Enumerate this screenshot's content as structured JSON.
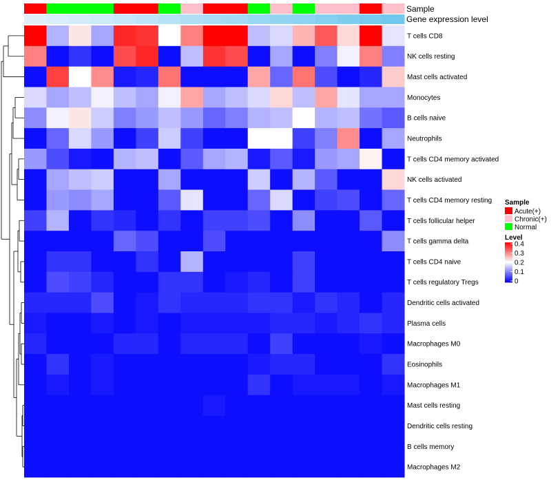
{
  "chart_data": {
    "type": "heatmap",
    "title": "",
    "annotations": {
      "sample_label": "Sample",
      "gene_label": "Gene expression level",
      "sample": [
        "Acute(+)",
        "Normal",
        "Normal",
        "Normal",
        "Acute(+)",
        "Acute(+)",
        "Normal",
        "Chronic(+)",
        "Acute(+)",
        "Acute(+)",
        "Normal",
        "Chronic(+)",
        "Normal",
        "Chronic(+)",
        "Chronic(+)",
        "Acute(+)",
        "Chronic(+)"
      ],
      "gene_expression": [
        0.05,
        0.1,
        0.15,
        0.2,
        0.25,
        0.3,
        0.35,
        0.4,
        0.45,
        0.5,
        0.55,
        0.6,
        0.65,
        0.7,
        0.75,
        0.8,
        0.85
      ]
    },
    "rows": [
      "T cells CD8",
      "NK cells resting",
      "Mast cells activated",
      "Monocytes",
      "B cells naive",
      "Neutrophils",
      "T cells CD4 memory activated",
      "NK cells activated",
      "T cells CD4 memory resting",
      "T cells follicular helper",
      "T cells gamma delta",
      "T cells CD4 naive",
      "T cells regulatory  Tregs",
      "Dendritic cells activated",
      "Plasma cells",
      "Macrophages M0",
      "Eosinophils",
      "Macrophages M1",
      "Mast cells resting",
      "Dendritic cells resting",
      "B cells memory",
      "Macrophages M2"
    ],
    "values": [
      [
        0.4,
        0.14,
        0.22,
        0.13,
        0.37,
        0.36,
        0.2,
        0.3,
        0.4,
        0.4,
        0.15,
        0.17,
        0.26,
        0.33,
        0.23,
        0.4,
        0.18
      ],
      [
        0.3,
        0.01,
        0.04,
        0.01,
        0.34,
        0.37,
        0.01,
        0.15,
        0.36,
        0.34,
        0.01,
        0.13,
        0.01,
        0.1,
        0.19,
        0.3,
        0.1
      ],
      [
        0.01,
        0.35,
        0.2,
        0.29,
        0.02,
        0.03,
        0.31,
        0.01,
        0.01,
        0.01,
        0.27,
        0.08,
        0.31,
        0.06,
        0.01,
        0.03,
        0.24
      ],
      [
        0.17,
        0.13,
        0.15,
        0.19,
        0.15,
        0.13,
        0.19,
        0.27,
        0.13,
        0.15,
        0.17,
        0.23,
        0.15,
        0.27,
        0.18,
        0.13,
        0.13
      ],
      [
        0.11,
        0.19,
        0.22,
        0.16,
        0.1,
        0.12,
        0.15,
        0.12,
        0.08,
        0.1,
        0.14,
        0.15,
        0.2,
        0.14,
        0.15,
        0.09,
        0.07
      ],
      [
        0.01,
        0.08,
        0.17,
        0.12,
        0.01,
        0.05,
        0.16,
        0.05,
        0.01,
        0.01,
        0.2,
        0.2,
        0.05,
        0.1,
        0.29,
        0.01,
        0.13
      ],
      [
        0.12,
        0.06,
        0.02,
        0.01,
        0.14,
        0.15,
        0.01,
        0.07,
        0.13,
        0.14,
        0.02,
        0.07,
        0.02,
        0.12,
        0.13,
        0.21,
        0.01
      ],
      [
        0.01,
        0.13,
        0.15,
        0.16,
        0.01,
        0.01,
        0.13,
        0.01,
        0.01,
        0.01,
        0.16,
        0.01,
        0.14,
        0.07,
        0.01,
        0.01,
        0.23
      ],
      [
        0.01,
        0.12,
        0.11,
        0.13,
        0.01,
        0.01,
        0.07,
        0.18,
        0.01,
        0.01,
        0.08,
        0.17,
        0.01,
        0.05,
        0.06,
        0.01,
        0.08
      ],
      [
        0.05,
        0.14,
        0.01,
        0.04,
        0.03,
        0.01,
        0.04,
        0.01,
        0.05,
        0.05,
        0.06,
        0.01,
        0.11,
        0.01,
        0.01,
        0.07,
        0.01
      ],
      [
        0.01,
        0.01,
        0.01,
        0.01,
        0.08,
        0.06,
        0.01,
        0.01,
        0.06,
        0.01,
        0.01,
        0.01,
        0.01,
        0.01,
        0.01,
        0.01,
        0.11
      ],
      [
        0.01,
        0.04,
        0.04,
        0.01,
        0.01,
        0.04,
        0.01,
        0.14,
        0.01,
        0.01,
        0.01,
        0.01,
        0.05,
        0.01,
        0.01,
        0.01,
        0.01
      ],
      [
        0.01,
        0.06,
        0.05,
        0.03,
        0.01,
        0.01,
        0.04,
        0.04,
        0.01,
        0.02,
        0.03,
        0.01,
        0.05,
        0.01,
        0.01,
        0.01,
        0.01
      ],
      [
        0.03,
        0.03,
        0.03,
        0.06,
        0.01,
        0.02,
        0.04,
        0.03,
        0.03,
        0.03,
        0.04,
        0.04,
        0.02,
        0.04,
        0.03,
        0.01,
        0.03
      ],
      [
        0.02,
        0.01,
        0.01,
        0.02,
        0.01,
        0.02,
        0.01,
        0.02,
        0.02,
        0.02,
        0.02,
        0.03,
        0.03,
        0.02,
        0.03,
        0.04,
        0.03
      ],
      [
        0.03,
        0.01,
        0.01,
        0.01,
        0.03,
        0.03,
        0.01,
        0.03,
        0.03,
        0.03,
        0.01,
        0.05,
        0.01,
        0.01,
        0.01,
        0.02,
        0.01
      ],
      [
        0.01,
        0.04,
        0.01,
        0.02,
        0.01,
        0.01,
        0.01,
        0.01,
        0.01,
        0.01,
        0.02,
        0.03,
        0.03,
        0.01,
        0.01,
        0.01,
        0.04
      ],
      [
        0.01,
        0.02,
        0.01,
        0.02,
        0.01,
        0.01,
        0.01,
        0.01,
        0.01,
        0.01,
        0.04,
        0.01,
        0.02,
        0.02,
        0.02,
        0.01,
        0.02
      ],
      [
        0.01,
        0.01,
        0.01,
        0.01,
        0.01,
        0.01,
        0.01,
        0.01,
        0.02,
        0.01,
        0.01,
        0.01,
        0.01,
        0.01,
        0.01,
        0.01,
        0.01
      ],
      [
        0.01,
        0.01,
        0.01,
        0.01,
        0.01,
        0.01,
        0.01,
        0.01,
        0.01,
        0.01,
        0.01,
        0.01,
        0.01,
        0.01,
        0.01,
        0.01,
        0.01
      ],
      [
        0.01,
        0.01,
        0.01,
        0.01,
        0.01,
        0.01,
        0.01,
        0.01,
        0.01,
        0.01,
        0.01,
        0.01,
        0.01,
        0.01,
        0.01,
        0.01,
        0.01
      ],
      [
        0.01,
        0.01,
        0.01,
        0.01,
        0.01,
        0.01,
        0.01,
        0.01,
        0.01,
        0.01,
        0.01,
        0.01,
        0.01,
        0.01,
        0.01,
        0.01,
        0.01
      ]
    ],
    "color_scale": {
      "min": 0,
      "mid": 0.2,
      "max": 0.4,
      "low": "#0000ff",
      "midcolor": "#ffffff",
      "high": "#ff0000"
    },
    "legend": {
      "sample_title": "Sample",
      "sample_entries": [
        {
          "label": "Acute(+)",
          "color": "#ff0000"
        },
        {
          "label": "Chronic(+)",
          "color": "#ffc0cb"
        },
        {
          "label": "Normal",
          "color": "#00ff00"
        }
      ],
      "level_title": "Level",
      "level_ticks": [
        "0.4",
        "0.3",
        "0.2",
        "0.1",
        "0"
      ],
      "placement": "right"
    },
    "gene_scale": {
      "low": "#e8f4fb",
      "high": "#5bc0eb"
    },
    "dendrogram": "rows-left"
  }
}
